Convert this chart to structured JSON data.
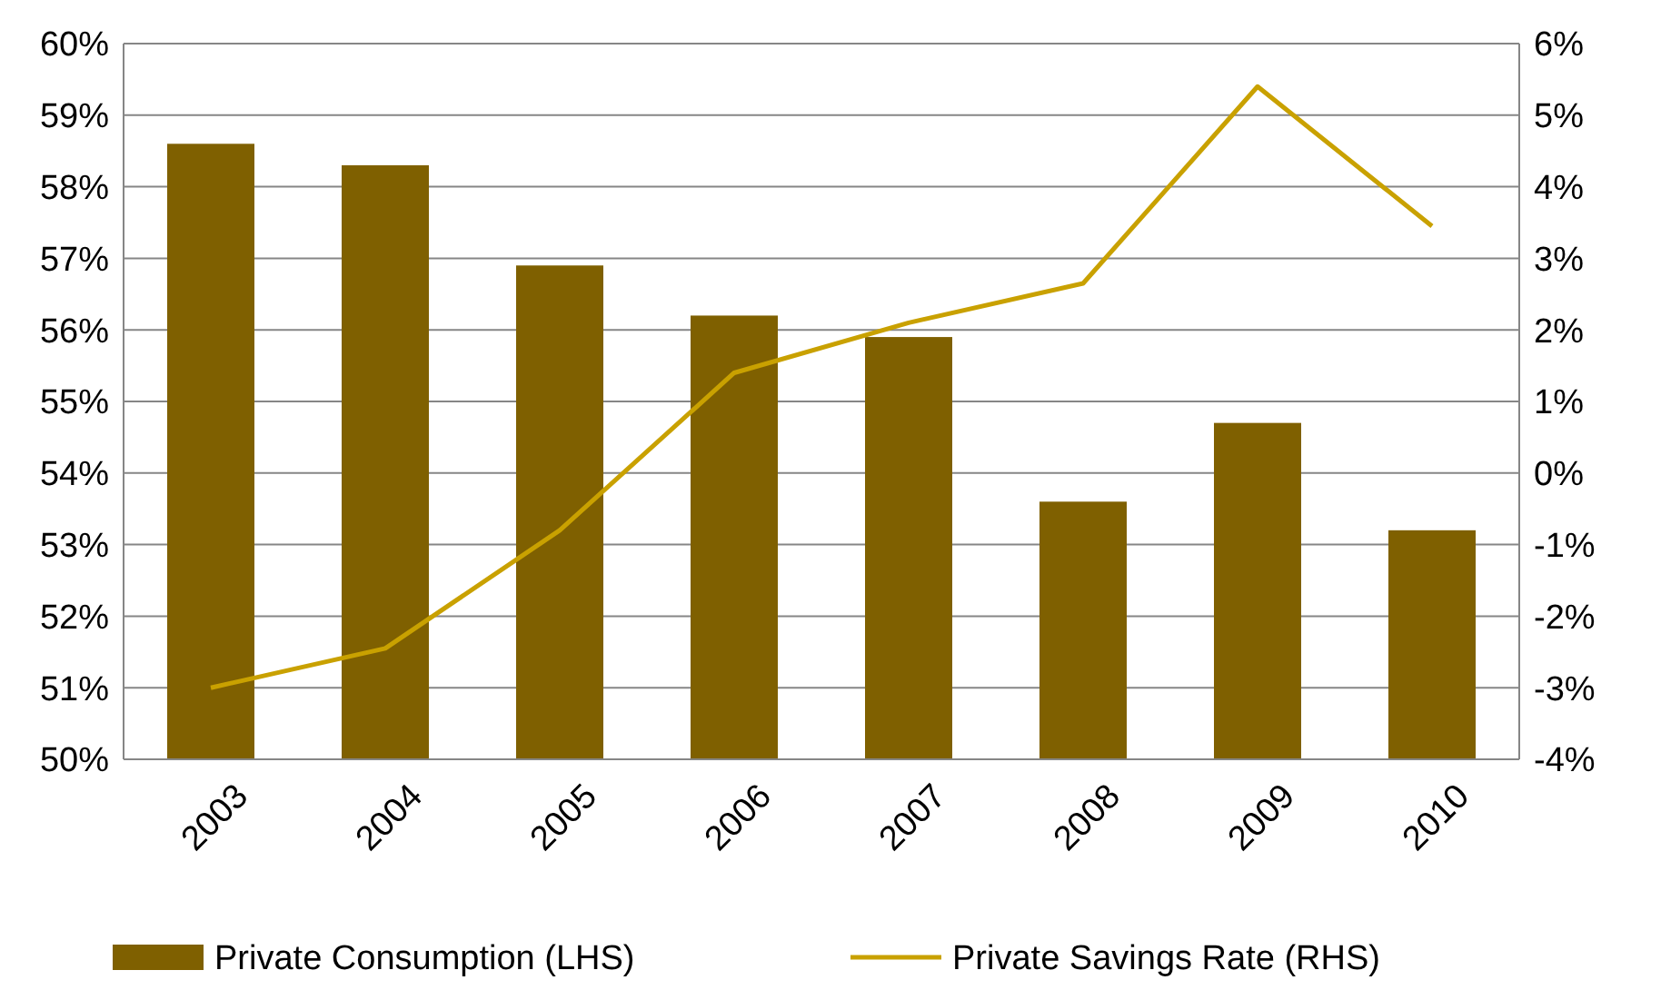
{
  "chart_data": {
    "type": "bar",
    "categories": [
      "2003",
      "2004",
      "2005",
      "2006",
      "2007",
      "2008",
      "2009",
      "2010"
    ],
    "series": [
      {
        "name": "Private Consumption (LHS)",
        "color": "#7f6000",
        "values": [
          58.6,
          58.3,
          56.9,
          56.2,
          55.9,
          53.6,
          54.7,
          53.2
        ]
      },
      {
        "name": "Private Savings Rate (RHS)",
        "type": "line",
        "axis": "y2",
        "color": "#c9a100",
        "values": [
          -3.0,
          -2.45,
          -0.8,
          1.4,
          2.1,
          2.65,
          5.4,
          3.45
        ]
      }
    ],
    "ylim": [
      50,
      60
    ],
    "yticks": [
      {
        "value": 50,
        "label": "50%"
      },
      {
        "value": 51,
        "label": "51%"
      },
      {
        "value": 52,
        "label": "52%"
      },
      {
        "value": 53,
        "label": "53%"
      },
      {
        "value": 54,
        "label": "54%"
      },
      {
        "value": 55,
        "label": "55%"
      },
      {
        "value": 56,
        "label": "56%"
      },
      {
        "value": 57,
        "label": "57%"
      },
      {
        "value": 58,
        "label": "58%"
      },
      {
        "value": 59,
        "label": "59%"
      },
      {
        "value": 60,
        "label": "60%"
      }
    ],
    "y2lim": [
      -4,
      6
    ],
    "y2ticks": [
      {
        "value": -4,
        "label": "-4%"
      },
      {
        "value": -3,
        "label": "-3%"
      },
      {
        "value": -2,
        "label": "-2%"
      },
      {
        "value": -1,
        "label": "-1%"
      },
      {
        "value": 0,
        "label": "0%"
      },
      {
        "value": 1,
        "label": "1%"
      },
      {
        "value": 2,
        "label": "2%"
      },
      {
        "value": 3,
        "label": "3%"
      },
      {
        "value": 4,
        "label": "4%"
      },
      {
        "value": 5,
        "label": "5%"
      },
      {
        "value": 6,
        "label": "6%"
      }
    ],
    "grid": "y",
    "legend": "bottom",
    "marker": "none",
    "line_style": "solid"
  }
}
